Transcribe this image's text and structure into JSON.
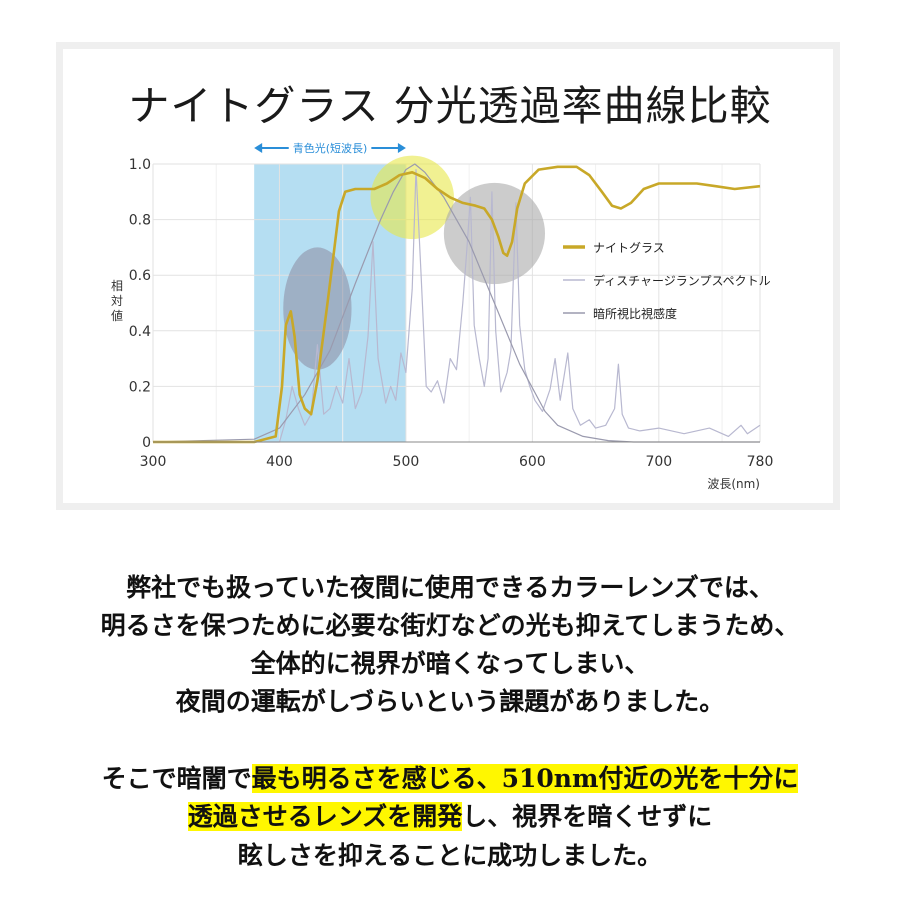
{
  "page": {
    "title": "ナイトグラス 分光透過率曲線比較",
    "paragraph1": [
      "弊社でも扱っていた夜間に使用できるカラーレンズでは、",
      "明るさを保つために必要な街灯などの光も抑えてしまうため、",
      "全体的に視界が暗くなってしまい、",
      "夜間の運転がしづらいという課題がありました。"
    ],
    "paragraph2": {
      "line1_pre": "そこで暗闇で",
      "line1_hl": "最も明るさを感じる、510nm付近の光を十分に",
      "line2_hl": "透過させるレンズを開発",
      "line2_post": "し、視界を暗くせずに",
      "line3": "眩しさを抑えることに成功しました。"
    },
    "highlight_color": "#fff700"
  },
  "chart_data": {
    "type": "line",
    "title": "",
    "xlabel": "波長(nm)",
    "ylabel": "相対値",
    "xlim": [
      300,
      780
    ],
    "ylim": [
      0,
      1.0
    ],
    "x_ticks": [
      "300",
      "400",
      "500",
      "600",
      "700",
      "780"
    ],
    "y_ticks": [
      "0",
      "0.2",
      "0.4",
      "0.6",
      "0.8",
      "1.0"
    ],
    "band": {
      "label": "青色光(短波長)",
      "from": 380,
      "to": 500,
      "color": "#a8d8f0"
    },
    "legend_position": "right",
    "series": [
      {
        "name": "ナイトグラス",
        "color": "#c8a828",
        "points": [
          [
            300,
            0
          ],
          [
            380,
            0
          ],
          [
            397,
            0.02
          ],
          [
            402,
            0.2
          ],
          [
            405,
            0.42
          ],
          [
            409,
            0.47
          ],
          [
            412,
            0.38
          ],
          [
            416,
            0.17
          ],
          [
            420,
            0.12
          ],
          [
            425,
            0.1
          ],
          [
            430,
            0.22
          ],
          [
            438,
            0.5
          ],
          [
            443,
            0.68
          ],
          [
            447,
            0.83
          ],
          [
            452,
            0.9
          ],
          [
            460,
            0.91
          ],
          [
            475,
            0.91
          ],
          [
            485,
            0.93
          ],
          [
            495,
            0.96
          ],
          [
            505,
            0.97
          ],
          [
            515,
            0.95
          ],
          [
            525,
            0.91
          ],
          [
            535,
            0.88
          ],
          [
            545,
            0.86
          ],
          [
            555,
            0.85
          ],
          [
            562,
            0.84
          ],
          [
            568,
            0.8
          ],
          [
            573,
            0.74
          ],
          [
            577,
            0.68
          ],
          [
            580,
            0.67
          ],
          [
            584,
            0.72
          ],
          [
            588,
            0.84
          ],
          [
            594,
            0.93
          ],
          [
            605,
            0.98
          ],
          [
            620,
            0.99
          ],
          [
            635,
            0.99
          ],
          [
            645,
            0.96
          ],
          [
            655,
            0.9
          ],
          [
            663,
            0.85
          ],
          [
            670,
            0.84
          ],
          [
            678,
            0.86
          ],
          [
            688,
            0.91
          ],
          [
            700,
            0.93
          ],
          [
            715,
            0.93
          ],
          [
            730,
            0.93
          ],
          [
            745,
            0.92
          ],
          [
            760,
            0.91
          ],
          [
            780,
            0.92
          ]
        ]
      },
      {
        "name": "ディスチャージランプスペクトル",
        "color": "#b8b8d0",
        "points": [
          [
            300,
            0
          ],
          [
            400,
            0
          ],
          [
            405,
            0.08
          ],
          [
            410,
            0.2
          ],
          [
            415,
            0.12
          ],
          [
            420,
            0.06
          ],
          [
            425,
            0.1
          ],
          [
            430,
            0.35
          ],
          [
            435,
            0.1
          ],
          [
            440,
            0.12
          ],
          [
            445,
            0.2
          ],
          [
            450,
            0.14
          ],
          [
            455,
            0.3
          ],
          [
            460,
            0.12
          ],
          [
            465,
            0.18
          ],
          [
            470,
            0.38
          ],
          [
            474,
            0.72
          ],
          [
            478,
            0.3
          ],
          [
            484,
            0.14
          ],
          [
            488,
            0.2
          ],
          [
            492,
            0.15
          ],
          [
            496,
            0.32
          ],
          [
            500,
            0.25
          ],
          [
            505,
            0.55
          ],
          [
            508,
            0.98
          ],
          [
            512,
            0.6
          ],
          [
            516,
            0.2
          ],
          [
            520,
            0.18
          ],
          [
            525,
            0.22
          ],
          [
            530,
            0.14
          ],
          [
            535,
            0.3
          ],
          [
            540,
            0.26
          ],
          [
            545,
            0.5
          ],
          [
            548,
            0.68
          ],
          [
            551,
            0.88
          ],
          [
            554,
            0.42
          ],
          [
            558,
            0.3
          ],
          [
            562,
            0.2
          ],
          [
            565,
            0.3
          ],
          [
            568,
            0.9
          ],
          [
            571,
            0.4
          ],
          [
            575,
            0.18
          ],
          [
            580,
            0.25
          ],
          [
            583,
            0.33
          ],
          [
            587,
            0.86
          ],
          [
            590,
            0.42
          ],
          [
            594,
            0.26
          ],
          [
            598,
            0.2
          ],
          [
            602,
            0.15
          ],
          [
            608,
            0.11
          ],
          [
            614,
            0.19
          ],
          [
            618,
            0.3
          ],
          [
            622,
            0.15
          ],
          [
            628,
            0.32
          ],
          [
            632,
            0.12
          ],
          [
            638,
            0.06
          ],
          [
            645,
            0.08
          ],
          [
            650,
            0.05
          ],
          [
            658,
            0.06
          ],
          [
            665,
            0.12
          ],
          [
            668,
            0.28
          ],
          [
            671,
            0.1
          ],
          [
            676,
            0.05
          ],
          [
            685,
            0.04
          ],
          [
            700,
            0.05
          ],
          [
            720,
            0.03
          ],
          [
            740,
            0.05
          ],
          [
            755,
            0.02
          ],
          [
            765,
            0.06
          ],
          [
            770,
            0.03
          ],
          [
            780,
            0.06
          ]
        ]
      },
      {
        "name": "暗所視比視感度",
        "color": "#9a9aae",
        "points": [
          [
            300,
            0
          ],
          [
            380,
            0.01
          ],
          [
            400,
            0.05
          ],
          [
            420,
            0.17
          ],
          [
            440,
            0.33
          ],
          [
            460,
            0.57
          ],
          [
            480,
            0.8
          ],
          [
            490,
            0.9
          ],
          [
            500,
            0.98
          ],
          [
            507,
            1.0
          ],
          [
            515,
            0.97
          ],
          [
            530,
            0.88
          ],
          [
            550,
            0.72
          ],
          [
            570,
            0.5
          ],
          [
            590,
            0.28
          ],
          [
            610,
            0.11
          ],
          [
            620,
            0.06
          ],
          [
            640,
            0.02
          ],
          [
            660,
            0.005
          ],
          [
            680,
            0
          ],
          [
            780,
            0
          ]
        ]
      }
    ],
    "annotations": [
      {
        "type": "ellipse",
        "cx": 430,
        "cy": 0.48,
        "rx": 27,
        "ry": 0.22,
        "color": "#8a8aa0"
      },
      {
        "type": "circle",
        "cx": 505,
        "cy": 0.88,
        "r": 33,
        "color": "#e8e84a"
      },
      {
        "type": "circle",
        "cx": 570,
        "cy": 0.75,
        "r": 40,
        "color": "#aaaaaa"
      }
    ]
  }
}
